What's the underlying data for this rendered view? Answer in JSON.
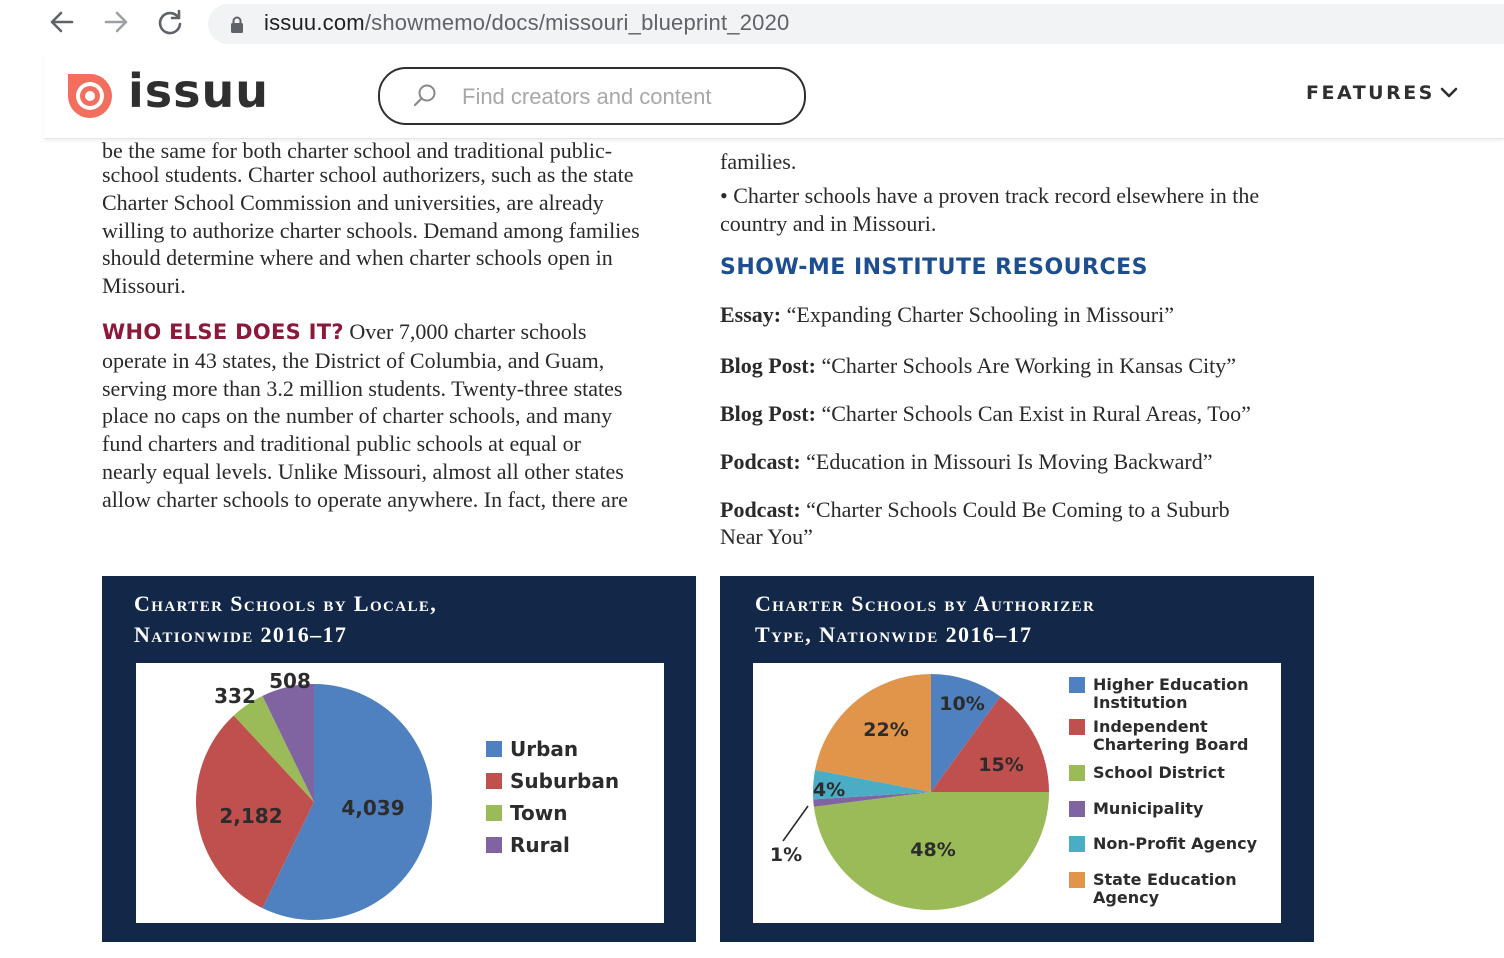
{
  "browser": {
    "url_host": "issuu.com",
    "url_path": "/showmemo/docs/missouri_blueprint_2020"
  },
  "issuu": {
    "logo_text": "issuu",
    "search_placeholder": "Find creators and content",
    "features_label": "FEATURES"
  },
  "left_column": {
    "cutoff_line": "be the same for both charter school and traditional public-",
    "para1_lines": [
      "school students. Charter school authorizers, such as the state",
      "Charter School Commission and universities, are already",
      "willing to authorize charter schools. Demand among families",
      "should determine where and when charter schools open in",
      "Missouri."
    ],
    "who_heading": "WHO ELSE DOES IT?",
    "who_first": " Over 7,000 charter schools",
    "who_lines": [
      "operate in 43 states, the District of Columbia, and Guam,",
      "serving more than 3.2 million students. Twenty-three states",
      "place no caps on the number of charter schools, and many",
      "fund charters and traditional public schools at equal or",
      "nearly equal levels. Unlike Missouri, almost all other states",
      "allow charter schools to operate anywhere. In fact, there are"
    ]
  },
  "right_column": {
    "cutoff_line": "families.",
    "bullet_lines": [
      "• Charter schools have a proven track record elsewhere in the",
      "country and in Missouri."
    ],
    "resources_heading": "SHOW-ME INSTITUTE RESOURCES",
    "resources": [
      {
        "type": "Essay:",
        "title": " “Expanding Charter Schooling in Missouri”"
      },
      {
        "type": "Blog Post:",
        "title": " “Charter Schools Are Working in Kansas City”"
      },
      {
        "type": "Blog Post:",
        "title": " “Charter Schools Can Exist in Rural Areas, Too”"
      },
      {
        "type": "Podcast:",
        "title": " “Education in Missouri Is Moving Backward”"
      },
      {
        "type": "Podcast:",
        "title": " “Charter Schools Could Be Coming to a Suburb",
        "title2": "Near You”"
      }
    ]
  },
  "chart_data": [
    {
      "type": "pie",
      "title": "Charter Schools by Locale, Nationwide 2016–17",
      "title_lines": [
        "Charter Schools by Locale,",
        "Nationwide 2016–17"
      ],
      "categories": [
        "Urban",
        "Suburban",
        "Town",
        "Rural"
      ],
      "values": [
        4039,
        2182,
        332,
        508
      ],
      "value_labels": [
        "4,039",
        "2,182",
        "332",
        "508"
      ],
      "colors": [
        "#4f81c1",
        "#c0504d",
        "#9bbb59",
        "#8064a2"
      ],
      "legend_position": "right"
    },
    {
      "type": "pie",
      "title": "Charter Schools by Authorizer Type, Nationwide 2016–17",
      "title_lines": [
        "Charter Schools by Authorizer",
        "Type, Nationwide 2016–17"
      ],
      "categories": [
        "Higher Education Institution",
        "Independent Chartering Board",
        "School District",
        "Municipality",
        "Non-Profit Agency",
        "State Education Agency"
      ],
      "legend_lines": [
        [
          "Higher Education",
          "Institution"
        ],
        [
          "Independent",
          "Chartering Board"
        ],
        [
          "School District"
        ],
        [
          "Municipality"
        ],
        [
          "Non-Profit Agency"
        ],
        [
          "State Education",
          "Agency"
        ]
      ],
      "values": [
        10,
        15,
        48,
        1,
        4,
        22
      ],
      "value_labels": [
        "10%",
        "15%",
        "48%",
        "1%",
        "4%",
        "22%"
      ],
      "colors": [
        "#4f81c1",
        "#c0504d",
        "#9bbb59",
        "#8064a2",
        "#4bacc6",
        "#e0954a"
      ],
      "legend_position": "right"
    }
  ]
}
